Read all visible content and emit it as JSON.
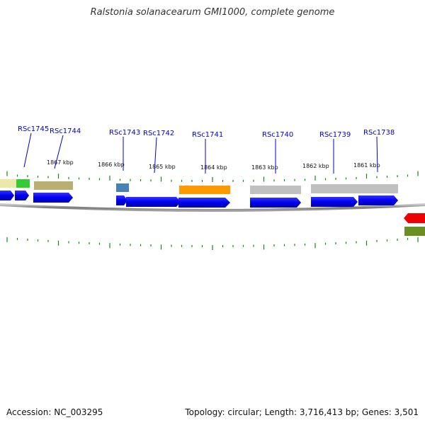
{
  "title": "Ralstonia solanacearum GMI1000, complete genome",
  "footer": {
    "accession": "Accession: NC_003295",
    "summary": "Topology: circular; Length: 3,716,413 bp; Genes: 3,501"
  },
  "colors": {
    "gene_label": "#0000cc",
    "tick": "#118811",
    "cds": "#0000ee",
    "backbone": "#8a8a8a"
  },
  "scale_labels": [
    "1867 kbp",
    "1866 kbp",
    "1865 kbp",
    "1864 kbp",
    "1863 kbp",
    "1862 kbp",
    "1861 kbp"
  ],
  "gene_labels": [
    "RSc1745",
    "RSc1744",
    "RSc1743",
    "RSc1742",
    "RSc1741",
    "RSc1740",
    "RSc1739",
    "RSc1738"
  ],
  "features": [
    {
      "name": "yellow-feature",
      "color": "#eee8a8"
    },
    {
      "name": "green-feature",
      "color": "#33cc33"
    },
    {
      "name": "olive-feature",
      "color": "#b8b070"
    },
    {
      "name": "steelblue-feature",
      "color": "#4682b4"
    },
    {
      "name": "orange-feature",
      "color": "#ff9900"
    },
    {
      "name": "gray-feature-1",
      "color": "#c0c0c0"
    },
    {
      "name": "gray-feature-2",
      "color": "#c0c0c0"
    },
    {
      "name": "red-feature",
      "color": "#ee0000"
    },
    {
      "name": "darkolive-feature",
      "color": "#6b8e23"
    }
  ]
}
